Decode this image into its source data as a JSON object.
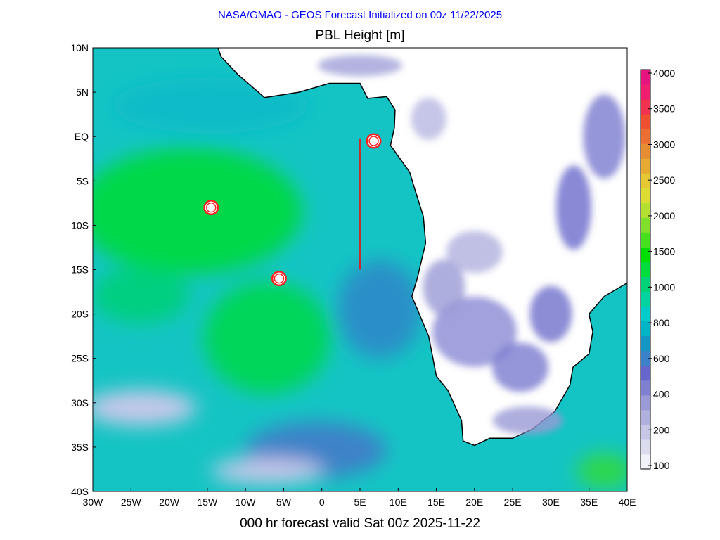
{
  "header": {
    "supertitle": "NASA/GMAO - GEOS Forecast Initialized on 00z 11/22/2025",
    "title": "PBL Height [m]"
  },
  "footer": {
    "valid_time": "000 hr forecast valid Sat 00z 2025-11-22"
  },
  "map": {
    "lon_range": [
      -30,
      40
    ],
    "lat_range": [
      -40,
      10
    ],
    "x_ticks": [
      "30W",
      "25W",
      "20W",
      "15W",
      "10W",
      "5W",
      "0",
      "5E",
      "10E",
      "15E",
      "20E",
      "25E",
      "30E",
      "35E",
      "40E"
    ],
    "y_ticks": [
      "10N",
      "5N",
      "EQ",
      "5S",
      "10S",
      "15S",
      "20S",
      "25S",
      "30S",
      "35S",
      "40S"
    ],
    "ocean_color": "#14c4c4",
    "markers": [
      {
        "lon": -14.5,
        "lat": -8.0
      },
      {
        "lon": -5.6,
        "lat": -16.0
      },
      {
        "lon": 6.8,
        "lat": -0.5
      }
    ],
    "track_line": {
      "lon": 5.0,
      "lat_start": -0.2,
      "lat_end": -15.0,
      "color": "#ff0000"
    }
  },
  "colorbar": {
    "tick_labels": [
      "100",
      "200",
      "400",
      "600",
      "800",
      "1000",
      "1500",
      "2000",
      "2500",
      "3000",
      "3500",
      "4000"
    ],
    "colors": [
      "#f2f2fa",
      "#dcdcef",
      "#c6c6e6",
      "#b0b0de",
      "#9a9ad6",
      "#8080d0",
      "#6666cc",
      "#3c82c8",
      "#1496c4",
      "#00b4c8",
      "#00cccc",
      "#00d2a0",
      "#00d278",
      "#00dc3c",
      "#00e000",
      "#46e01e",
      "#82e02d",
      "#b4e032",
      "#dcdc32",
      "#e6c832",
      "#e6aa32",
      "#e68c32",
      "#eb6e32",
      "#f05032",
      "#f03250",
      "#f01e6e",
      "#e6147f"
    ]
  }
}
